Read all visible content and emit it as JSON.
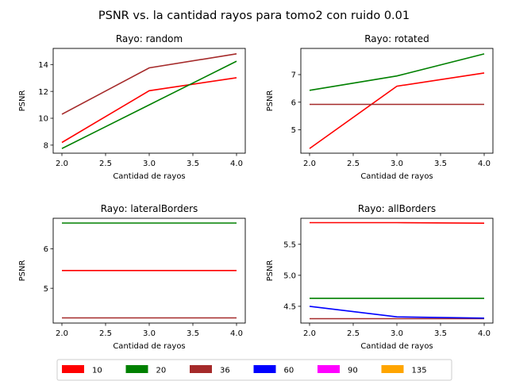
{
  "figure": {
    "title": "PSNR vs. la cantidad rayos para tomo2 con ruido 0.01"
  },
  "legend": {
    "placement": "bottom",
    "entries": [
      {
        "label": "10",
        "color": "#ff0000"
      },
      {
        "label": "20",
        "color": "#008000"
      },
      {
        "label": "36",
        "color": "#a52a2a"
      },
      {
        "label": "60",
        "color": "#0000ff"
      },
      {
        "label": "90",
        "color": "#ff00ff"
      },
      {
        "label": "135",
        "color": "#ffa500"
      }
    ]
  },
  "chart_data": [
    {
      "type": "line",
      "title": "Rayo: random",
      "xlabel": "Cantidad de rayos",
      "ylabel": "PSNR",
      "x": [
        2.0,
        3.0,
        4.0
      ],
      "xticks": [
        "2.0",
        "2.5",
        "3.0",
        "3.5",
        "4.0"
      ],
      "yticks": [
        "8",
        "10",
        "12",
        "14"
      ],
      "xlim": [
        1.9,
        4.1
      ],
      "ylim": [
        7.4,
        15.2
      ],
      "grid": false,
      "series": [
        {
          "name": "10",
          "color": "#ff0000",
          "values": [
            8.2,
            12.05,
            13.02
          ]
        },
        {
          "name": "20",
          "color": "#008000",
          "values": [
            7.75,
            11.0,
            14.25
          ]
        },
        {
          "name": "36",
          "color": "#a52a2a",
          "values": [
            10.3,
            13.75,
            14.8
          ]
        }
      ]
    },
    {
      "type": "line",
      "title": "Rayo: rotated",
      "xlabel": "Cantidad de rayos",
      "ylabel": "PSNR",
      "x": [
        2.0,
        3.0,
        4.0
      ],
      "xticks": [
        "2.0",
        "2.5",
        "3.0",
        "3.5",
        "4.0"
      ],
      "yticks": [
        "5",
        "6",
        "7"
      ],
      "xlim": [
        1.9,
        4.1
      ],
      "ylim": [
        4.15,
        7.95
      ],
      "grid": false,
      "series": [
        {
          "name": "10",
          "color": "#ff0000",
          "values": [
            4.32,
            6.58,
            7.06
          ]
        },
        {
          "name": "20",
          "color": "#008000",
          "values": [
            6.43,
            6.95,
            7.75
          ]
        },
        {
          "name": "36",
          "color": "#a52a2a",
          "values": [
            5.92,
            5.92,
            5.92
          ]
        }
      ]
    },
    {
      "type": "line",
      "title": "Rayo: lateralBorders",
      "xlabel": "Cantidad de rayos",
      "ylabel": "PSNR",
      "x": [
        2.0,
        3.0,
        4.0
      ],
      "xticks": [
        "2.0",
        "2.5",
        "3.0",
        "3.5",
        "4.0"
      ],
      "yticks": [
        "5",
        "6"
      ],
      "xlim": [
        1.9,
        4.1
      ],
      "ylim": [
        4.12,
        6.77
      ],
      "grid": false,
      "series": [
        {
          "name": "10",
          "color": "#ff0000",
          "values": [
            5.45,
            5.45,
            5.45
          ]
        },
        {
          "name": "20",
          "color": "#008000",
          "values": [
            6.65,
            6.65,
            6.65
          ]
        },
        {
          "name": "36",
          "color": "#a52a2a",
          "values": [
            4.25,
            4.25,
            4.25
          ]
        }
      ]
    },
    {
      "type": "line",
      "title": "Rayo: allBorders",
      "xlabel": "Cantidad de rayos",
      "ylabel": "PSNR",
      "x": [
        2.0,
        3.0,
        4.0
      ],
      "xticks": [
        "2.0",
        "2.5",
        "3.0",
        "3.5",
        "4.0"
      ],
      "yticks": [
        "4.5",
        "5.0",
        "5.5"
      ],
      "xlim": [
        1.9,
        4.1
      ],
      "ylim": [
        4.23,
        5.92
      ],
      "grid": false,
      "series": [
        {
          "name": "10",
          "color": "#ff0000",
          "values": [
            5.85,
            5.85,
            5.84
          ]
        },
        {
          "name": "20",
          "color": "#008000",
          "values": [
            4.63,
            4.63,
            4.63
          ]
        },
        {
          "name": "36",
          "color": "#a52a2a",
          "values": [
            4.3,
            4.3,
            4.3
          ]
        },
        {
          "name": "60",
          "color": "#0000ff",
          "values": [
            4.5,
            4.33,
            4.31
          ]
        }
      ]
    }
  ]
}
